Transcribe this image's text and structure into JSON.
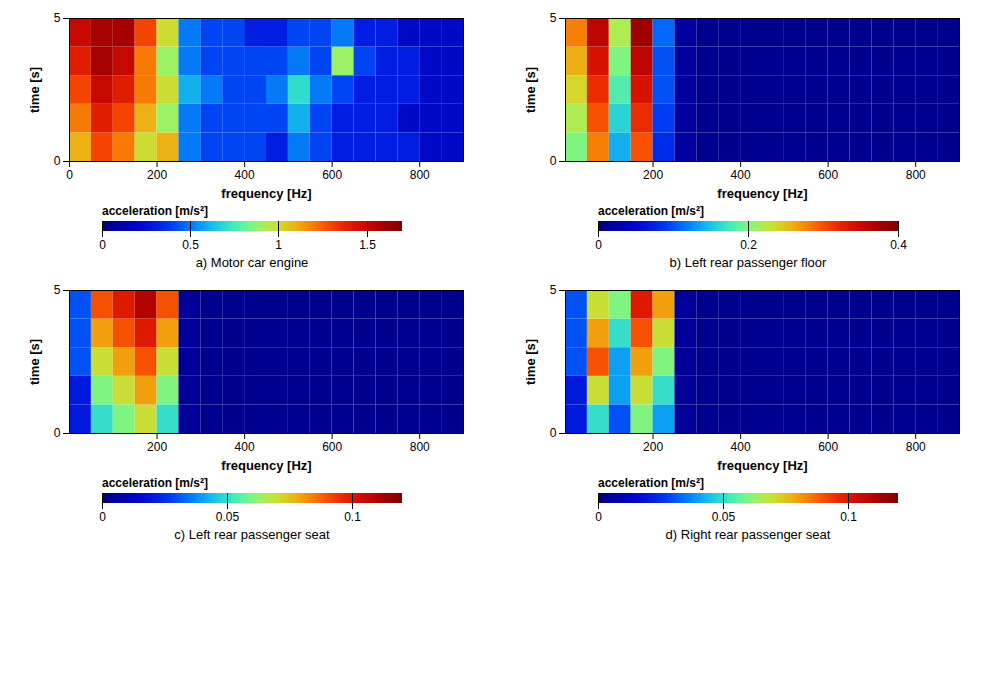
{
  "chart_data": [
    {
      "type": "heatmap",
      "caption": "a) Motor car engine",
      "x_label": "frequency [Hz]",
      "y_label": "time [s]",
      "xlim": [
        0,
        900
      ],
      "xticks": [
        0,
        200,
        400,
        600,
        800
      ],
      "ylim": [
        0,
        5
      ],
      "yticks": [
        0,
        5
      ],
      "x_bins": [
        0,
        50,
        100,
        150,
        200,
        250,
        300,
        350,
        400,
        450,
        500,
        550,
        600,
        650,
        700,
        750,
        800,
        850,
        900
      ],
      "y_bins": [
        0,
        1,
        2,
        3,
        4,
        5
      ],
      "cells": [
        [
          1.1,
          1.3,
          1.2,
          1.0,
          1.1,
          0.5,
          0.4,
          0.4,
          0.4,
          0.3,
          0.5,
          0.4,
          0.3,
          0.3,
          0.3,
          0.3,
          0.2,
          0.2
        ],
        [
          1.2,
          1.4,
          1.3,
          1.1,
          0.9,
          0.5,
          0.4,
          0.4,
          0.4,
          0.4,
          0.6,
          0.4,
          0.3,
          0.3,
          0.3,
          0.2,
          0.2,
          0.2
        ],
        [
          1.3,
          1.5,
          1.4,
          1.2,
          1.0,
          0.6,
          0.5,
          0.4,
          0.4,
          0.5,
          0.7,
          0.5,
          0.4,
          0.3,
          0.3,
          0.3,
          0.2,
          0.2
        ],
        [
          1.4,
          1.6,
          1.5,
          1.2,
          0.9,
          0.5,
          0.4,
          0.4,
          0.4,
          0.4,
          0.5,
          0.4,
          0.9,
          0.4,
          0.3,
          0.3,
          0.2,
          0.2
        ],
        [
          1.5,
          1.6,
          1.6,
          1.3,
          1.0,
          0.5,
          0.4,
          0.4,
          0.3,
          0.3,
          0.4,
          0.4,
          0.5,
          0.3,
          0.3,
          0.2,
          0.2,
          0.2
        ]
      ],
      "colorbar": {
        "label": "acceleration [m/s²]",
        "range": [
          0,
          1.7
        ],
        "ticks": [
          0,
          0.5,
          1,
          1.5
        ]
      }
    },
    {
      "type": "heatmap",
      "caption": "b) Left rear passenger floor",
      "x_label": "frequency [Hz]",
      "y_label": "time [s]",
      "xlim": [
        0,
        900
      ],
      "xticks": [
        200,
        400,
        600,
        800
      ],
      "ylim": [
        0,
        5
      ],
      "yticks": [
        0,
        5
      ],
      "x_bins": [
        0,
        50,
        100,
        150,
        200,
        250,
        300,
        350,
        400,
        450,
        500,
        550,
        600,
        650,
        700,
        750,
        800,
        850,
        900
      ],
      "y_bins": [
        0,
        1,
        2,
        3,
        4,
        5
      ],
      "cells": [
        [
          0.2,
          0.28,
          0.14,
          0.3,
          0.08,
          0.02,
          0.01,
          0.01,
          0.01,
          0.01,
          0.01,
          0.01,
          0.01,
          0.01,
          0.01,
          0.01,
          0.01,
          0.01
        ],
        [
          0.22,
          0.3,
          0.16,
          0.32,
          0.09,
          0.02,
          0.01,
          0.01,
          0.01,
          0.01,
          0.01,
          0.01,
          0.01,
          0.01,
          0.01,
          0.01,
          0.01,
          0.01
        ],
        [
          0.24,
          0.32,
          0.18,
          0.34,
          0.1,
          0.02,
          0.01,
          0.01,
          0.01,
          0.01,
          0.01,
          0.01,
          0.01,
          0.01,
          0.01,
          0.01,
          0.01,
          0.01
        ],
        [
          0.26,
          0.34,
          0.2,
          0.36,
          0.1,
          0.02,
          0.01,
          0.01,
          0.01,
          0.01,
          0.01,
          0.01,
          0.01,
          0.01,
          0.01,
          0.01,
          0.01,
          0.01
        ],
        [
          0.28,
          0.36,
          0.22,
          0.38,
          0.11,
          0.02,
          0.01,
          0.01,
          0.01,
          0.01,
          0.01,
          0.01,
          0.01,
          0.01,
          0.01,
          0.01,
          0.01,
          0.01
        ]
      ],
      "colorbar": {
        "label": "acceleration [m/s²]",
        "range": [
          0,
          0.4
        ],
        "ticks": [
          0,
          0.2,
          0.4
        ]
      }
    },
    {
      "type": "heatmap",
      "caption": "c) Left rear passenger seat",
      "x_label": "frequency [Hz]",
      "y_label": "time [s]",
      "xlim": [
        0,
        900
      ],
      "xticks": [
        200,
        400,
        600,
        800
      ],
      "ylim": [
        0,
        5
      ],
      "yticks": [
        0,
        5
      ],
      "x_bins": [
        0,
        50,
        100,
        150,
        200,
        250,
        300,
        350,
        400,
        450,
        500,
        550,
        600,
        650,
        700,
        750,
        800,
        850,
        900
      ],
      "y_bins": [
        0,
        1,
        2,
        3,
        4,
        5
      ],
      "cells": [
        [
          0.02,
          0.05,
          0.06,
          0.07,
          0.05,
          0.005,
          0.003,
          0.003,
          0.003,
          0.003,
          0.003,
          0.003,
          0.003,
          0.003,
          0.003,
          0.003,
          0.003,
          0.003
        ],
        [
          0.02,
          0.06,
          0.07,
          0.08,
          0.06,
          0.005,
          0.003,
          0.003,
          0.003,
          0.003,
          0.003,
          0.003,
          0.003,
          0.003,
          0.003,
          0.003,
          0.003,
          0.003
        ],
        [
          0.03,
          0.07,
          0.08,
          0.09,
          0.07,
          0.005,
          0.003,
          0.003,
          0.003,
          0.003,
          0.003,
          0.003,
          0.003,
          0.003,
          0.003,
          0.003,
          0.003,
          0.003
        ],
        [
          0.03,
          0.08,
          0.09,
          0.1,
          0.08,
          0.005,
          0.003,
          0.003,
          0.003,
          0.003,
          0.003,
          0.003,
          0.003,
          0.003,
          0.003,
          0.003,
          0.003,
          0.003
        ],
        [
          0.03,
          0.09,
          0.1,
          0.11,
          0.09,
          0.005,
          0.003,
          0.003,
          0.003,
          0.003,
          0.003,
          0.003,
          0.003,
          0.003,
          0.003,
          0.003,
          0.003,
          0.003
        ]
      ],
      "colorbar": {
        "label": "acceleration [m/s²]",
        "range": [
          0,
          0.12
        ],
        "ticks": [
          0,
          0.05,
          0.1
        ]
      }
    },
    {
      "type": "heatmap",
      "caption": "d) Right rear passenger seat",
      "x_label": "frequency [Hz]",
      "y_label": "time [s]",
      "xlim": [
        0,
        900
      ],
      "xticks": [
        200,
        400,
        600,
        800
      ],
      "ylim": [
        0,
        5
      ],
      "yticks": [
        0,
        5
      ],
      "x_bins": [
        0,
        50,
        100,
        150,
        200,
        250,
        300,
        350,
        400,
        450,
        500,
        550,
        600,
        650,
        700,
        750,
        800,
        850,
        900
      ],
      "y_bins": [
        0,
        1,
        2,
        3,
        4,
        5
      ],
      "cells": [
        [
          0.02,
          0.05,
          0.03,
          0.06,
          0.04,
          0.005,
          0.003,
          0.003,
          0.003,
          0.003,
          0.003,
          0.003,
          0.003,
          0.003,
          0.003,
          0.003,
          0.003,
          0.003
        ],
        [
          0.02,
          0.07,
          0.04,
          0.07,
          0.05,
          0.005,
          0.003,
          0.003,
          0.003,
          0.003,
          0.003,
          0.003,
          0.003,
          0.003,
          0.003,
          0.003,
          0.003,
          0.003
        ],
        [
          0.03,
          0.09,
          0.04,
          0.08,
          0.06,
          0.005,
          0.003,
          0.003,
          0.003,
          0.003,
          0.003,
          0.003,
          0.003,
          0.003,
          0.003,
          0.003,
          0.003,
          0.003
        ],
        [
          0.03,
          0.08,
          0.05,
          0.09,
          0.07,
          0.005,
          0.003,
          0.003,
          0.003,
          0.003,
          0.003,
          0.003,
          0.003,
          0.003,
          0.003,
          0.003,
          0.003,
          0.003
        ],
        [
          0.03,
          0.07,
          0.06,
          0.1,
          0.08,
          0.005,
          0.003,
          0.003,
          0.003,
          0.003,
          0.003,
          0.003,
          0.003,
          0.003,
          0.003,
          0.003,
          0.003,
          0.003
        ]
      ],
      "colorbar": {
        "label": "acceleration [m/s²]",
        "range": [
          0,
          0.12
        ],
        "ticks": [
          0,
          0.05,
          0.1
        ]
      }
    }
  ]
}
